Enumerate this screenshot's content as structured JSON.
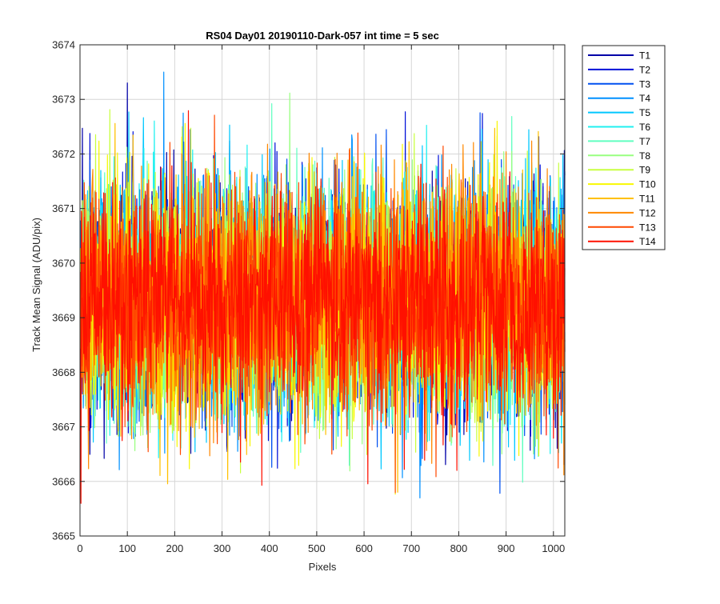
{
  "chart_data": {
    "type": "line",
    "title": "RS04 Day01 20190110-Dark-057 int time = 5 sec",
    "xlabel": "Pixels",
    "ylabel": "Track Mean Signal (ADU/pix)",
    "xlim": [
      0,
      1024
    ],
    "ylim": [
      3665,
      3674
    ],
    "xticks": [
      "0",
      "100",
      "200",
      "300",
      "400",
      "500",
      "600",
      "700",
      "800",
      "900",
      "1000"
    ],
    "yticks": [
      "3665",
      "3666",
      "3667",
      "3668",
      "3669",
      "3670",
      "3671",
      "3672",
      "3673",
      "3674"
    ],
    "grid": true,
    "legend_position": "outside-top-right",
    "noise": {
      "mean": 3669.3,
      "std": 1.05,
      "points_per_series": 1024
    },
    "series": [
      {
        "name": "T1",
        "color": "#0000a8"
      },
      {
        "name": "T2",
        "color": "#0010d8"
      },
      {
        "name": "T3",
        "color": "#0050f0"
      },
      {
        "name": "T4",
        "color": "#0090ff"
      },
      {
        "name": "T5",
        "color": "#00c8ff"
      },
      {
        "name": "T6",
        "color": "#20f0f0"
      },
      {
        "name": "T7",
        "color": "#60ffc0"
      },
      {
        "name": "T8",
        "color": "#98ff80"
      },
      {
        "name": "T9",
        "color": "#c8ff40"
      },
      {
        "name": "T10",
        "color": "#f8f800"
      },
      {
        "name": "T11",
        "color": "#ffc000"
      },
      {
        "name": "T12",
        "color": "#ff8800"
      },
      {
        "name": "T13",
        "color": "#ff4800"
      },
      {
        "name": "T14",
        "color": "#ff1000"
      }
    ]
  }
}
